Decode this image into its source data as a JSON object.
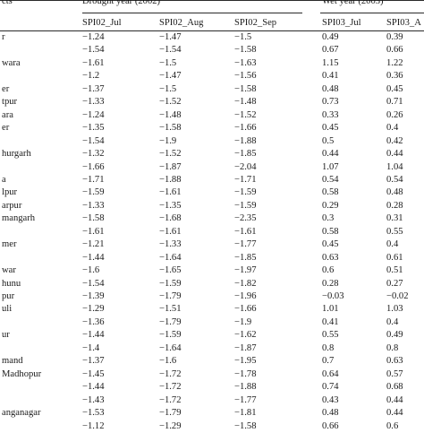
{
  "table": {
    "stub_header": "cts",
    "groups": [
      {
        "label": "Drought year (2002)"
      },
      {
        "label": "Wet year (2003)"
      }
    ],
    "columns": [
      "SPI02_Jul",
      "SPI02_Aug",
      "SPI02_Sep",
      "SPI03_Jul",
      "SPI03_A"
    ],
    "rows": [
      {
        "district": "r",
        "values": [
          "−1.24",
          "−1.47",
          "−1.5",
          "0.49",
          "0.39"
        ]
      },
      {
        "district": "",
        "values": [
          "−1.54",
          "−1.54",
          "−1.58",
          "0.67",
          "0.66"
        ]
      },
      {
        "district": "wara",
        "values": [
          "−1.61",
          "−1.5",
          "−1.63",
          "1.15",
          "1.22"
        ]
      },
      {
        "district": "",
        "values": [
          "−1.2",
          "−1.47",
          "−1.56",
          "0.41",
          "0.36"
        ]
      },
      {
        "district": "er",
        "values": [
          "−1.37",
          "−1.5",
          "−1.58",
          "0.48",
          "0.45"
        ]
      },
      {
        "district": "tpur",
        "values": [
          "−1.33",
          "−1.52",
          "−1.48",
          "0.73",
          "0.71"
        ]
      },
      {
        "district": "ara",
        "values": [
          "−1.24",
          "−1.48",
          "−1.52",
          "0.33",
          "0.26"
        ]
      },
      {
        "district": "er",
        "values": [
          "−1.35",
          "−1.58",
          "−1.66",
          "0.45",
          "0.4"
        ]
      },
      {
        "district": "",
        "values": [
          "−1.54",
          "−1.9",
          "−1.88",
          "0.5",
          "0.42"
        ]
      },
      {
        "district": "hurgarh",
        "values": [
          "−1.32",
          "−1.52",
          "−1.85",
          "0.44",
          "0.44"
        ]
      },
      {
        "district": "",
        "values": [
          "−1.66",
          "−1.87",
          "−2.04",
          "1.07",
          "1.04"
        ]
      },
      {
        "district": "a",
        "values": [
          "−1.71",
          "−1.88",
          "−1.71",
          "0.54",
          "0.54"
        ]
      },
      {
        "district": "lpur",
        "values": [
          "−1.59",
          "−1.61",
          "−1.59",
          "0.58",
          "0.48"
        ]
      },
      {
        "district": "arpur",
        "values": [
          "−1.33",
          "−1.35",
          "−1.59",
          "0.29",
          "0.28"
        ]
      },
      {
        "district": "mangarh",
        "values": [
          "−1.58",
          "−1.68",
          "−2.35",
          "0.3",
          "0.31"
        ]
      },
      {
        "district": "",
        "values": [
          "−1.61",
          "−1.61",
          "−1.61",
          "0.58",
          "0.55"
        ]
      },
      {
        "district": "mer",
        "values": [
          "−1.21",
          "−1.33",
          "−1.77",
          "0.45",
          "0.4"
        ]
      },
      {
        "district": "",
        "values": [
          "−1.44",
          "−1.64",
          "−1.85",
          "0.63",
          "0.61"
        ]
      },
      {
        "district": "war",
        "values": [
          "−1.6",
          "−1.65",
          "−1.97",
          "0.6",
          "0.51"
        ]
      },
      {
        "district": "hunu",
        "values": [
          "−1.54",
          "−1.59",
          "−1.82",
          "0.28",
          "0.27"
        ]
      },
      {
        "district": "pur",
        "values": [
          "−1.39",
          "−1.79",
          "−1.96",
          "−0.03",
          "−0.02"
        ]
      },
      {
        "district": "uli",
        "values": [
          "−1.29",
          "−1.51",
          "−1.66",
          "1.01",
          "1.03"
        ]
      },
      {
        "district": "",
        "values": [
          "−1.36",
          "−1.79",
          "−1.9",
          "0.41",
          "0.4"
        ]
      },
      {
        "district": "ur",
        "values": [
          "−1.44",
          "−1.59",
          "−1.62",
          "0.55",
          "0.49"
        ]
      },
      {
        "district": "",
        "values": [
          "−1.4",
          "−1.64",
          "−1.87",
          "0.8",
          "0.8"
        ]
      },
      {
        "district": "mand",
        "values": [
          "−1.37",
          "−1.6",
          "−1.95",
          "0.7",
          "0.63"
        ]
      },
      {
        "district": "Madhopur",
        "values": [
          "−1.45",
          "−1.72",
          "−1.78",
          "0.64",
          "0.57"
        ]
      },
      {
        "district": "",
        "values": [
          "−1.44",
          "−1.72",
          "−1.88",
          "0.74",
          "0.68"
        ]
      },
      {
        "district": "",
        "values": [
          "−1.43",
          "−1.72",
          "−1.77",
          "0.43",
          "0.44"
        ]
      },
      {
        "district": "anganagar",
        "values": [
          "−1.53",
          "−1.79",
          "−1.81",
          "0.48",
          "0.44"
        ]
      },
      {
        "district": "",
        "values": [
          "−1.12",
          "−1.29",
          "−1.58",
          "0.66",
          "0.6"
        ]
      }
    ]
  }
}
